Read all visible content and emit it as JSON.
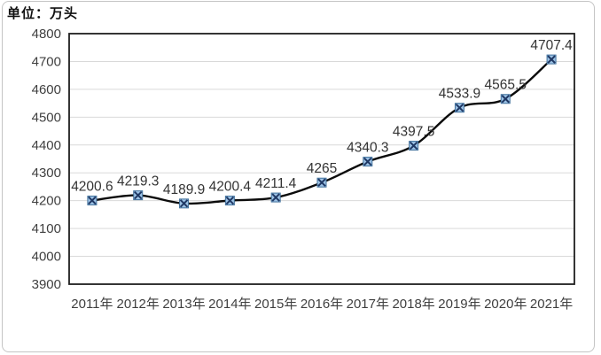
{
  "chart_data": {
    "type": "line",
    "title": "",
    "unit_label": "单位：万头",
    "categories": [
      "2011年",
      "2012年",
      "2013年",
      "2014年",
      "2015年",
      "2016年",
      "2017年",
      "2018年",
      "2019年",
      "2020年",
      "2021年"
    ],
    "series": [
      {
        "name": "",
        "values": [
          4200.6,
          4219.3,
          4189.9,
          4200.4,
          4211.4,
          4265,
          4340.3,
          4397.5,
          4533.9,
          4565.5,
          4707.4
        ],
        "labels": [
          "4200.6",
          "4219.3",
          "4189.9",
          "4200.4",
          "4211.4",
          "4265",
          "4340.3",
          "4397.5",
          "4533.9",
          "4565.5",
          "4707.4"
        ]
      }
    ],
    "ylim": [
      3900,
      4800
    ],
    "ytick_step": 100,
    "yticks": [
      "3900",
      "4000",
      "4100",
      "4200",
      "4300",
      "4400",
      "4500",
      "4600",
      "4700",
      "4800"
    ],
    "grid": true,
    "legend_position": "none",
    "marker_style": "x-square",
    "line_smooth": true
  },
  "colors": {
    "line": "#0b0b0b",
    "marker_fill": "#9dc3e6",
    "marker_border": "#41719c",
    "marker_x": "#1f3864",
    "grid": "#d9d9d9",
    "plot_border": "#1f1f1f",
    "axis_text": "#3f3f3f",
    "label_text": "#333333",
    "outer_border": "#c4c4c4"
  }
}
